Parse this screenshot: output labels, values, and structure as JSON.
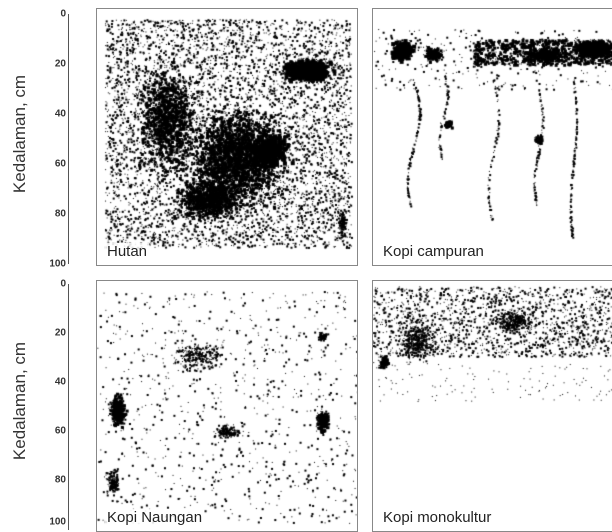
{
  "y_axis": {
    "title": "Kedalaman, cm",
    "ticks": [
      "0",
      "20",
      "40",
      "60",
      "80",
      "100"
    ],
    "tick_values": [
      0,
      20,
      40,
      60,
      80,
      100
    ]
  },
  "panels": [
    {
      "label": "Hutan",
      "density": "very-high"
    },
    {
      "label": "Kopi campuran",
      "density": "medium"
    },
    {
      "label": "Kopi Naungan",
      "density": "low"
    },
    {
      "label": "Kopi monokultur",
      "density": "low-shallow"
    }
  ],
  "colors": {
    "roots": "#000000",
    "frame": "#888888",
    "background": "#ffffff"
  }
}
